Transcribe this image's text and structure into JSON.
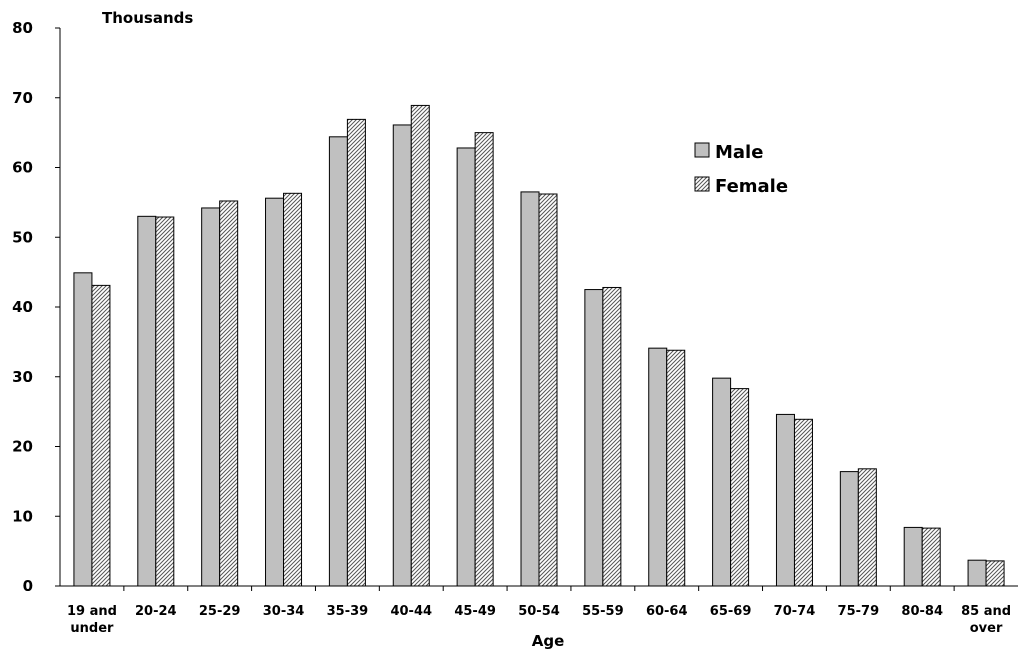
{
  "chart_data": {
    "type": "bar",
    "ylabel": "Thousands",
    "xlabel": "Age",
    "ylim": [
      0,
      80
    ],
    "yticks": [
      0,
      10,
      20,
      30,
      40,
      50,
      60,
      70,
      80
    ],
    "categories": [
      [
        "19 and",
        "under"
      ],
      [
        "20-24"
      ],
      [
        "25-29"
      ],
      [
        "30-34"
      ],
      [
        "35-39"
      ],
      [
        "40-44"
      ],
      [
        "45-49"
      ],
      [
        "50-54"
      ],
      [
        "55-59"
      ],
      [
        "60-64"
      ],
      [
        "65-69"
      ],
      [
        "70-74"
      ],
      [
        "75-79"
      ],
      [
        "80-84"
      ],
      [
        "85 and",
        "over"
      ]
    ],
    "series": [
      {
        "name": "Male",
        "pattern": "solid",
        "color": "#c0c0c0",
        "values": [
          44.9,
          53.0,
          54.2,
          55.6,
          64.4,
          66.1,
          62.8,
          56.5,
          42.5,
          34.1,
          29.8,
          24.6,
          16.4,
          8.4,
          3.7
        ]
      },
      {
        "name": "Female",
        "pattern": "hatched",
        "color": "#808080",
        "values": [
          43.1,
          52.9,
          55.2,
          56.3,
          66.9,
          68.9,
          65.0,
          56.2,
          42.8,
          33.8,
          28.3,
          23.9,
          16.8,
          8.3,
          3.6
        ]
      }
    ],
    "legend": "right",
    "grid": false
  }
}
